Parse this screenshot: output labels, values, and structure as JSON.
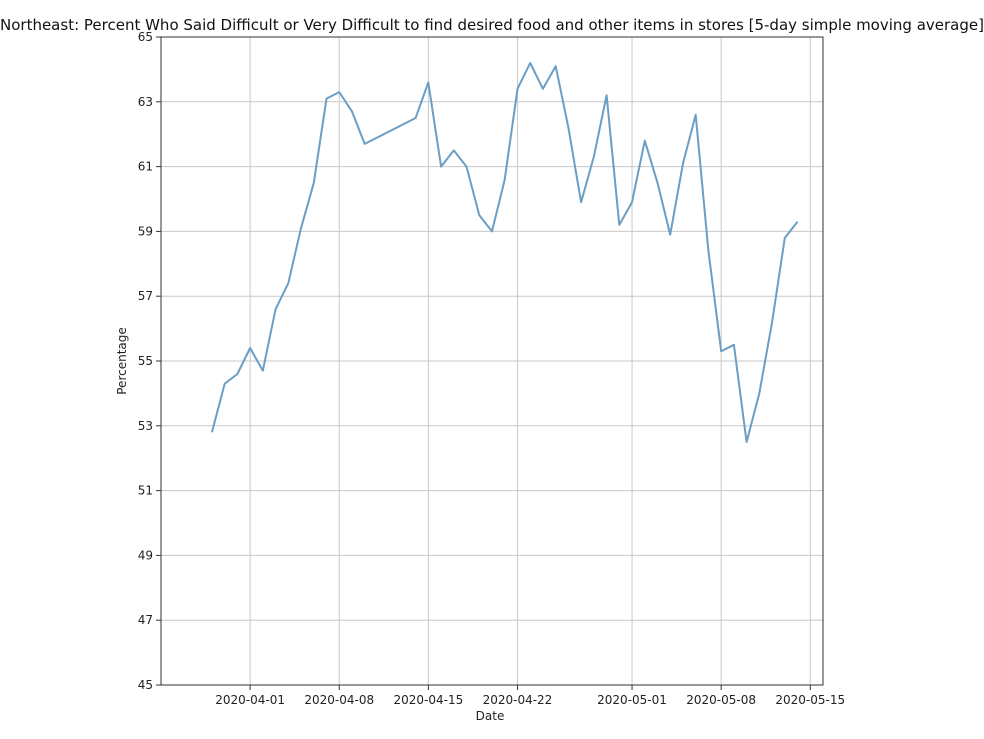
{
  "chart_data": {
    "type": "line",
    "title": "Northeast: Percent Who Said Difficult or Very Difficult to find desired food and other items in stores [5-day simple moving average]",
    "xlabel": "Date",
    "ylabel": "Percentage",
    "ylim": [
      45,
      65
    ],
    "xlim": [
      "2020-03-25",
      "2020-05-16"
    ],
    "yticks": [
      45,
      47,
      49,
      51,
      53,
      55,
      57,
      59,
      61,
      63,
      65
    ],
    "xticks": [
      "2020-04-01",
      "2020-04-08",
      "2020-04-15",
      "2020-04-22",
      "2020-05-01",
      "2020-05-08",
      "2020-05-15"
    ],
    "grid": true,
    "line_color": "#6b9ec5",
    "series": [
      {
        "x": [
          "2020-03-29",
          "2020-03-30",
          "2020-03-31",
          "2020-04-01",
          "2020-04-02",
          "2020-04-03",
          "2020-04-04",
          "2020-04-05",
          "2020-04-06",
          "2020-04-07",
          "2020-04-08",
          "2020-04-09",
          "2020-04-10",
          "2020-04-14",
          "2020-04-15",
          "2020-04-16",
          "2020-04-17",
          "2020-04-18",
          "2020-04-19",
          "2020-04-20",
          "2020-04-21",
          "2020-04-22",
          "2020-04-23",
          "2020-04-24",
          "2020-04-25",
          "2020-04-26",
          "2020-04-27",
          "2020-04-28",
          "2020-04-29",
          "2020-04-30",
          "2020-05-01",
          "2020-05-02",
          "2020-05-03",
          "2020-05-04",
          "2020-05-05",
          "2020-05-06",
          "2020-05-07",
          "2020-05-08",
          "2020-05-09",
          "2020-05-10",
          "2020-05-11",
          "2020-05-12",
          "2020-05-13",
          "2020-05-14"
        ],
        "values": [
          52.8,
          54.3,
          54.6,
          55.4,
          54.7,
          56.6,
          57.4,
          59.1,
          60.5,
          63.1,
          63.3,
          62.7,
          61.7,
          62.5,
          63.6,
          61.0,
          61.5,
          61.0,
          59.5,
          59.0,
          60.6,
          63.4,
          64.2,
          63.4,
          64.1,
          62.2,
          59.9,
          61.3,
          63.2,
          59.2,
          59.9,
          61.8,
          60.5,
          58.9,
          61.1,
          62.6,
          58.4,
          55.3,
          55.5,
          52.5,
          54.0,
          56.2,
          58.8,
          59.3
        ]
      }
    ]
  }
}
